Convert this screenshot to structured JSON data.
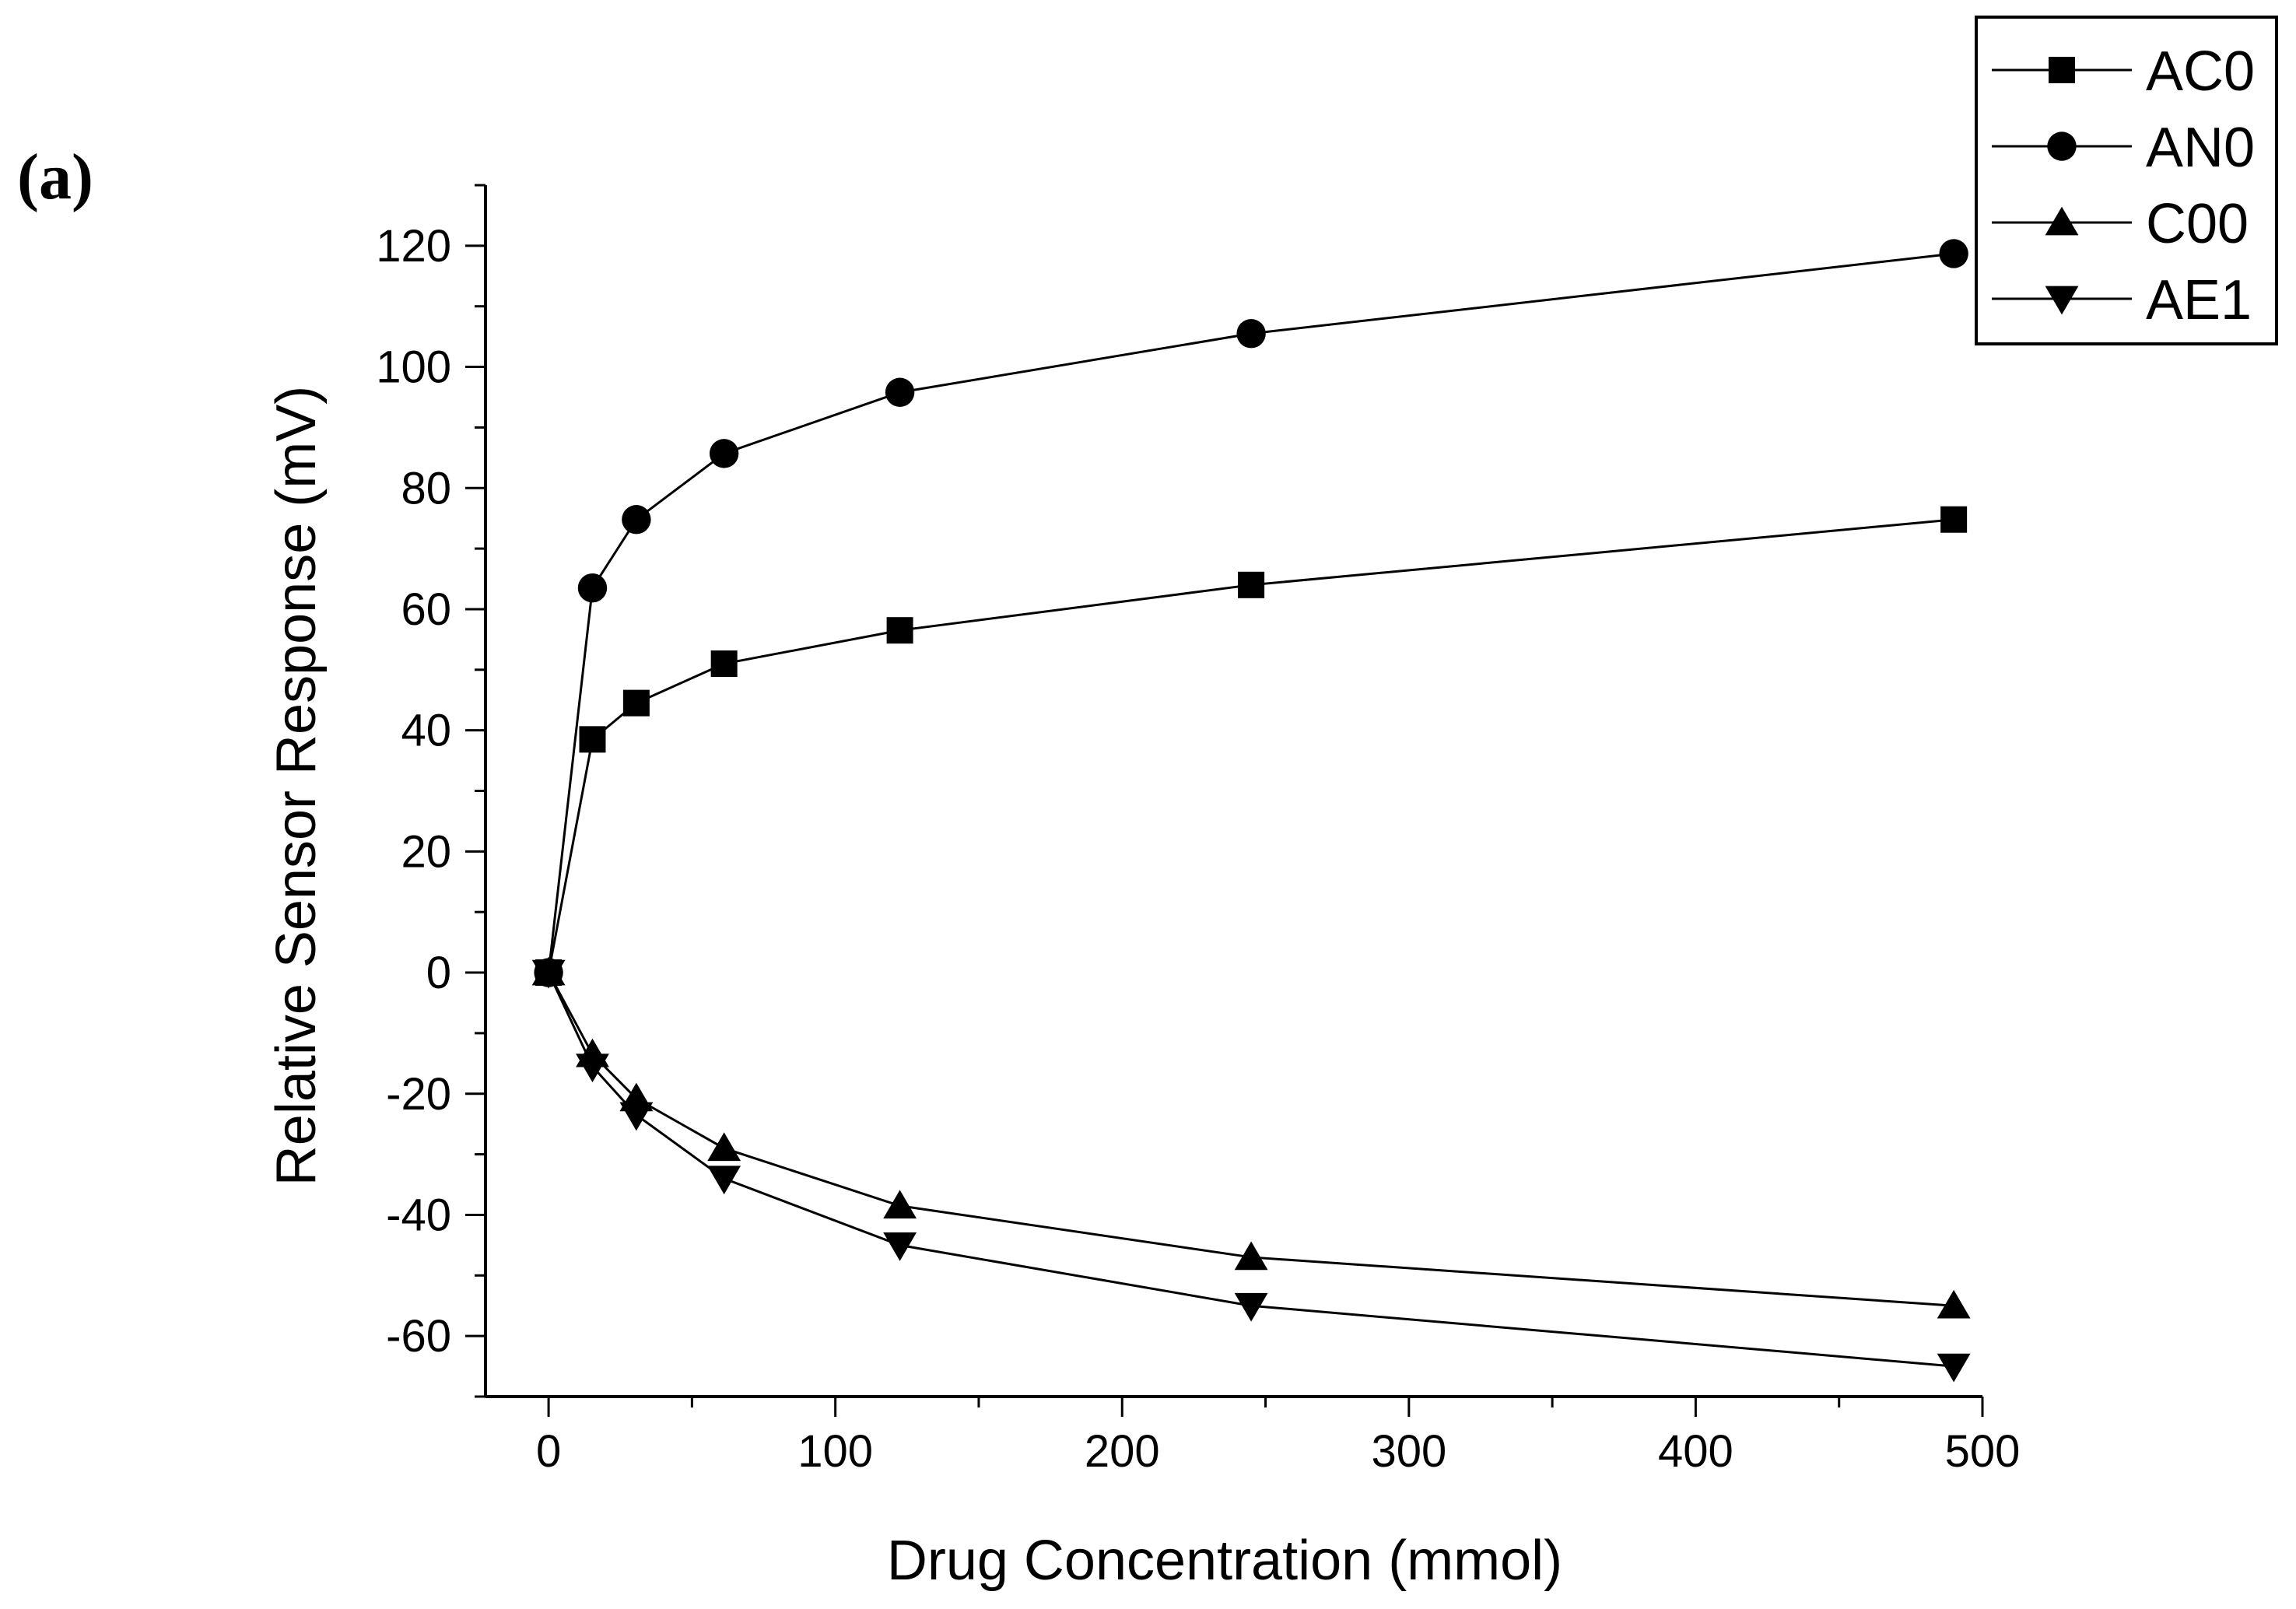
{
  "chart_data": {
    "type": "line",
    "panel_label": "(a)",
    "title": "",
    "xlabel": "Drug Concentration (mmol)",
    "ylabel": "Relative Sensor Response (mV)",
    "xlim": [
      -22,
      500
    ],
    "ylim": [
      -70,
      130
    ],
    "xticks": [
      0,
      100,
      200,
      300,
      400,
      500
    ],
    "yticks": [
      -60,
      -40,
      -20,
      0,
      20,
      40,
      60,
      80,
      100,
      120
    ],
    "x_minor_step": 50,
    "y_minor_step": 10,
    "grid": false,
    "legend_position": "top-right",
    "x": [
      0,
      15.3,
      30.6,
      61.2,
      122.5,
      245,
      490
    ],
    "series": [
      {
        "name": "AC0",
        "marker": "square",
        "values": [
          0,
          38.5,
          44.5,
          51,
          56.5,
          64,
          74.8
        ]
      },
      {
        "name": "AN0",
        "marker": "circle",
        "values": [
          0,
          63.5,
          74.8,
          85.7,
          95.8,
          105.5,
          118.7
        ]
      },
      {
        "name": "C00",
        "marker": "triangle-up",
        "values": [
          0,
          -13.5,
          -20.8,
          -29,
          -38.5,
          -47,
          -55
        ]
      },
      {
        "name": "AE1",
        "marker": "triangle-down",
        "values": [
          0,
          -15.5,
          -23.5,
          -34,
          -45,
          -55,
          -65
        ]
      }
    ],
    "colors": {
      "line": "#000000",
      "marker": "#000000",
      "axis": "#000000",
      "background": "#ffffff"
    }
  }
}
